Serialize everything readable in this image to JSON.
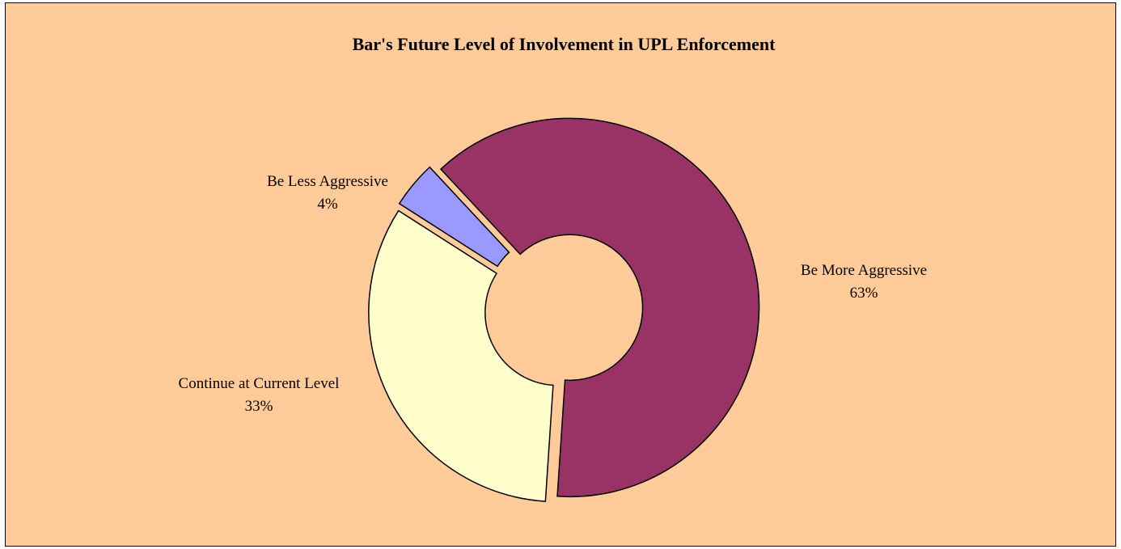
{
  "chart_data": {
    "type": "donut",
    "title": "Bar's Future Level of Involvement in UPL Enforcement",
    "categories": [
      "Be More Aggressive",
      "Continue at Current Level",
      "Be Less Aggressive"
    ],
    "values": [
      63,
      33,
      4
    ],
    "value_labels": [
      "63%",
      "33%",
      "4%"
    ],
    "colors": [
      "#993366",
      "#ffffcc",
      "#9999ff"
    ]
  }
}
